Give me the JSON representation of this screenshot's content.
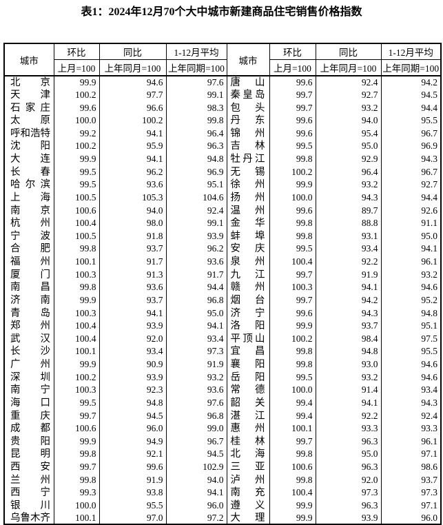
{
  "title": "表1：2024年12月70个大中城市新建商品住宅销售价格指数",
  "colors": {
    "background": "#ffffff",
    "text": "#000000",
    "border": "#000000"
  },
  "table": {
    "header": {
      "city": "城市",
      "mom": "环比",
      "mom_base": "上月=100",
      "yoy": "同比",
      "yoy_base": "上年同月=100",
      "avg": "1-12月平均",
      "avg_base": "上年同期=100"
    },
    "rows": [
      {
        "left": {
          "city": "北京",
          "mom": "99.9",
          "yoy": "94.6",
          "avg": "97.6"
        },
        "right": {
          "city": "唐山",
          "mom": "99.6",
          "yoy": "92.4",
          "avg": "94.2"
        }
      },
      {
        "left": {
          "city": "天津",
          "mom": "100.2",
          "yoy": "97.7",
          "avg": "99.1"
        },
        "right": {
          "city": "秦皇岛",
          "mom": "99.7",
          "yoy": "92.7",
          "avg": "94.5"
        }
      },
      {
        "left": {
          "city": "石家庄",
          "mom": "99.6",
          "yoy": "96.6",
          "avg": "98.3"
        },
        "right": {
          "city": "包头",
          "mom": "99.7",
          "yoy": "93.2",
          "avg": "94.4"
        }
      },
      {
        "left": {
          "city": "太原",
          "mom": "100.0",
          "yoy": "100.2",
          "avg": "99.8"
        },
        "right": {
          "city": "丹东",
          "mom": "99.6",
          "yoy": "94.0",
          "avg": "95.5"
        }
      },
      {
        "left": {
          "city": "呼和浩特",
          "mom": "99.2",
          "yoy": "94.1",
          "avg": "96.4"
        },
        "right": {
          "city": "锦州",
          "mom": "99.6",
          "yoy": "95.4",
          "avg": "96.7"
        }
      },
      {
        "left": {
          "city": "沈阳",
          "mom": "100.2",
          "yoy": "95.9",
          "avg": "96.3"
        },
        "right": {
          "city": "吉林",
          "mom": "99.5",
          "yoy": "95.0",
          "avg": "96.9"
        }
      },
      {
        "left": {
          "city": "大连",
          "mom": "99.9",
          "yoy": "94.1",
          "avg": "94.8"
        },
        "right": {
          "city": "牡丹江",
          "mom": "99.8",
          "yoy": "92.9",
          "avg": "94.3"
        }
      },
      {
        "left": {
          "city": "长春",
          "mom": "99.5",
          "yoy": "96.2",
          "avg": "96.9"
        },
        "right": {
          "city": "无锡",
          "mom": "100.2",
          "yoy": "96.4",
          "avg": "96.7"
        }
      },
      {
        "left": {
          "city": "哈尔滨",
          "mom": "99.5",
          "yoy": "93.6",
          "avg": "95.1"
        },
        "right": {
          "city": "徐州",
          "mom": "99.9",
          "yoy": "93.2",
          "avg": "92.7"
        }
      },
      {
        "left": {
          "city": "上海",
          "mom": "100.5",
          "yoy": "105.3",
          "avg": "104.6"
        },
        "right": {
          "city": "扬州",
          "mom": "100.0",
          "yoy": "94.3",
          "avg": "94.4"
        }
      },
      {
        "left": {
          "city": "南京",
          "mom": "100.6",
          "yoy": "94.0",
          "avg": "92.4"
        },
        "right": {
          "city": "温州",
          "mom": "99.6",
          "yoy": "89.7",
          "avg": "92.6"
        }
      },
      {
        "left": {
          "city": "杭州",
          "mom": "100.4",
          "yoy": "98.0",
          "avg": "99.1"
        },
        "right": {
          "city": "金华",
          "mom": "99.8",
          "yoy": "88.8",
          "avg": "91.1"
        }
      },
      {
        "left": {
          "city": "宁波",
          "mom": "100.5",
          "yoy": "91.8",
          "avg": "93.9"
        },
        "right": {
          "city": "蚌埠",
          "mom": "99.8",
          "yoy": "93.1",
          "avg": "95.0"
        }
      },
      {
        "left": {
          "city": "合肥",
          "mom": "99.8",
          "yoy": "93.7",
          "avg": "96.2"
        },
        "right": {
          "city": "安庆",
          "mom": "99.5",
          "yoy": "93.4",
          "avg": "94.1"
        }
      },
      {
        "left": {
          "city": "福州",
          "mom": "100.1",
          "yoy": "91.7",
          "avg": "93.6"
        },
        "right": {
          "city": "泉州",
          "mom": "100.4",
          "yoy": "92.2",
          "avg": "96.1"
        }
      },
      {
        "left": {
          "city": "厦门",
          "mom": "100.3",
          "yoy": "91.3",
          "avg": "91.7"
        },
        "right": {
          "city": "九江",
          "mom": "99.7",
          "yoy": "91.9",
          "avg": "93.2"
        }
      },
      {
        "left": {
          "city": "南昌",
          "mom": "99.8",
          "yoy": "93.6",
          "avg": "94.4"
        },
        "right": {
          "city": "赣州",
          "mom": "100.3",
          "yoy": "94.1",
          "avg": "94.6"
        }
      },
      {
        "left": {
          "city": "济南",
          "mom": "99.9",
          "yoy": "93.7",
          "avg": "96.8"
        },
        "right": {
          "city": "烟台",
          "mom": "99.7",
          "yoy": "94.2",
          "avg": "95.2"
        }
      },
      {
        "left": {
          "city": "青岛",
          "mom": "100.3",
          "yoy": "94.1",
          "avg": "95.0"
        },
        "right": {
          "city": "济宁",
          "mom": "99.6",
          "yoy": "94.3",
          "avg": "94.8"
        }
      },
      {
        "left": {
          "city": "郑州",
          "mom": "100.4",
          "yoy": "93.9",
          "avg": "94.1"
        },
        "right": {
          "city": "洛阳",
          "mom": "99.9",
          "yoy": "93.7",
          "avg": "95.1"
        }
      },
      {
        "left": {
          "city": "武汉",
          "mom": "100.4",
          "yoy": "92.0",
          "avg": "93.4"
        },
        "right": {
          "city": "平顶山",
          "mom": "100.2",
          "yoy": "98.4",
          "avg": "97.5"
        }
      },
      {
        "left": {
          "city": "长沙",
          "mom": "100.1",
          "yoy": "93.4",
          "avg": "97.3"
        },
        "right": {
          "city": "宜昌",
          "mom": "99.8",
          "yoy": "94.8",
          "avg": "95.5"
        }
      },
      {
        "left": {
          "city": "广州",
          "mom": "99.9",
          "yoy": "90.9",
          "avg": "91.9"
        },
        "right": {
          "city": "襄阳",
          "mom": "99.8",
          "yoy": "93.0",
          "avg": "94.6"
        }
      },
      {
        "left": {
          "city": "深圳",
          "mom": "100.2",
          "yoy": "93.9",
          "avg": "93.2"
        },
        "right": {
          "city": "岳阳",
          "mom": "99.5",
          "yoy": "93.2",
          "avg": "94.6"
        }
      },
      {
        "left": {
          "city": "南宁",
          "mom": "100.3",
          "yoy": "92.3",
          "avg": "93.6"
        },
        "right": {
          "city": "常德",
          "mom": "100.0",
          "yoy": "91.4",
          "avg": "93.4"
        }
      },
      {
        "left": {
          "city": "海口",
          "mom": "99.5",
          "yoy": "94.8",
          "avg": "97.6"
        },
        "right": {
          "city": "韶关",
          "mom": "99.4",
          "yoy": "94.1",
          "avg": "94.3"
        }
      },
      {
        "left": {
          "city": "重庆",
          "mom": "99.7",
          "yoy": "94.5",
          "avg": "96.8"
        },
        "right": {
          "city": "湛江",
          "mom": "99.4",
          "yoy": "92.2",
          "avg": "92.4"
        }
      },
      {
        "left": {
          "city": "成都",
          "mom": "100.6",
          "yoy": "96.0",
          "avg": "99.0"
        },
        "right": {
          "city": "惠州",
          "mom": "100.1",
          "yoy": "93.3",
          "avg": "93.3"
        }
      },
      {
        "left": {
          "city": "贵阳",
          "mom": "99.9",
          "yoy": "94.9",
          "avg": "96.7"
        },
        "right": {
          "city": "桂林",
          "mom": "99.7",
          "yoy": "96.3",
          "avg": "96.1"
        }
      },
      {
        "left": {
          "city": "昆明",
          "mom": "99.8",
          "yoy": "92.1",
          "avg": "94.5"
        },
        "right": {
          "city": "北海",
          "mom": "99.8",
          "yoy": "95.0",
          "avg": "97.1"
        }
      },
      {
        "left": {
          "city": "西安",
          "mom": "99.7",
          "yoy": "99.6",
          "avg": "102.9"
        },
        "right": {
          "city": "三亚",
          "mom": "100.6",
          "yoy": "96.3",
          "avg": "98.6"
        }
      },
      {
        "left": {
          "city": "兰州",
          "mom": "99.8",
          "yoy": "91.9",
          "avg": "94.0"
        },
        "right": {
          "city": "泸州",
          "mom": "99.8",
          "yoy": "92.0",
          "avg": "93.7"
        }
      },
      {
        "left": {
          "city": "西宁",
          "mom": "99.3",
          "yoy": "93.8",
          "avg": "94.1"
        },
        "right": {
          "city": "南充",
          "mom": "100.4",
          "yoy": "97.3",
          "avg": "97.3"
        }
      },
      {
        "left": {
          "city": "银川",
          "mom": "100.0",
          "yoy": "95.5",
          "avg": "96.0"
        },
        "right": {
          "city": "遵义",
          "mom": "99.9",
          "yoy": "96.3",
          "avg": "97.1"
        }
      },
      {
        "left": {
          "city": "乌鲁木齐",
          "mom": "100.1",
          "yoy": "97.0",
          "avg": "97.2"
        },
        "right": {
          "city": "大理",
          "mom": "99.9",
          "yoy": "93.9",
          "avg": "96.0"
        }
      }
    ]
  }
}
